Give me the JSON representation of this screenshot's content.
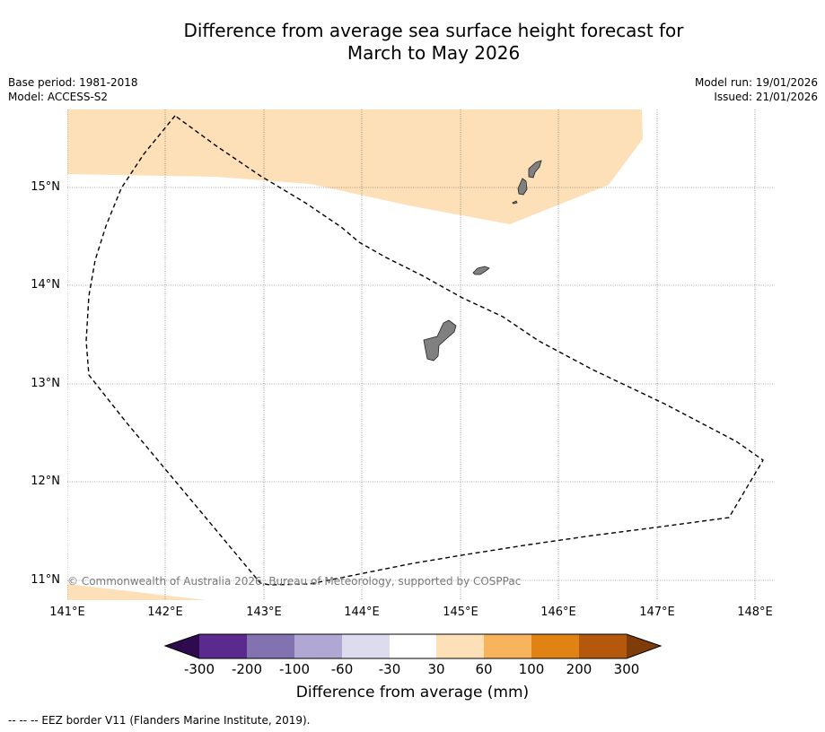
{
  "title": {
    "line1": "Difference from average sea surface height forecast for",
    "line2": "March to May 2026"
  },
  "meta": {
    "base_period": "Base period: 1981-2018",
    "model": "Model: ACCESS-S2",
    "model_run": "Model run: 19/01/2026",
    "issued": "Issued: 21/01/2026"
  },
  "map": {
    "lat_labels": [
      "15°N",
      "14°N",
      "13°N",
      "12°N",
      "11°N"
    ],
    "lon_labels": [
      "141°E",
      "142°E",
      "143°E",
      "144°E",
      "145°E",
      "146°E",
      "147°E",
      "148°E"
    ],
    "copyright": "© Commonwealth of Australia 2026, Bureau of Meteorology, supported by COSPPac",
    "colors": {
      "anomaly_fill": "#fde0b8",
      "land": "#808080",
      "gridline": "#555555",
      "eez_border": "#000000"
    }
  },
  "colorbar": {
    "ticks": [
      "-300",
      "-200",
      "-100",
      "-60",
      "-30",
      "30",
      "60",
      "100",
      "200",
      "300"
    ],
    "colors": {
      "below_min": "#2d0b4e",
      "bin_1": "#5a2a8c",
      "bin_2": "#8272b0",
      "bin_3": "#b0a8d2",
      "bin_4": "#dcdcee",
      "bin_5": "#ffffff",
      "bin_6": "#fde0b8",
      "bin_7": "#f8b45c",
      "bin_8": "#e08214",
      "bin_9": "#b3580c",
      "above_max": "#7f3b08"
    },
    "label": "Difference from average (mm)"
  },
  "footnote": "--  --  -- EEZ border V11 (Flanders Marine Institute, 2019)."
}
